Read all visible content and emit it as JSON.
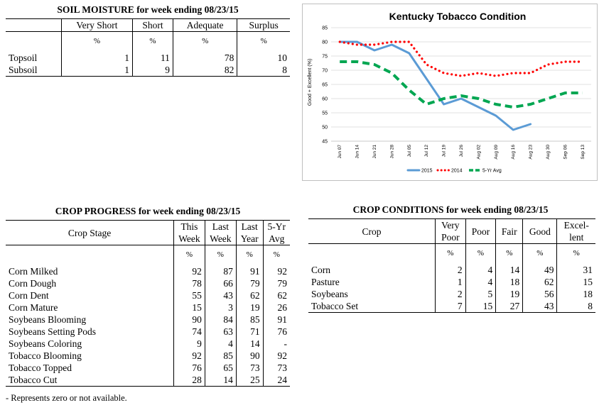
{
  "soil": {
    "title": "SOIL MOISTURE for week ending 08/23/15",
    "headers": [
      "Very Short",
      "Short",
      "Adequate",
      "Surplus"
    ],
    "unit": "%",
    "rows": [
      {
        "label": "Topsoil",
        "values": [
          "1",
          "11",
          "78",
          "10"
        ]
      },
      {
        "label": "Subsoil",
        "values": [
          "1",
          "9",
          "82",
          "8"
        ]
      }
    ]
  },
  "progress": {
    "title": "CROP PROGRESS for week ending 08/23/15",
    "stage_header": "Crop Stage",
    "headers": [
      [
        "This",
        "Week"
      ],
      [
        "Last",
        "Week"
      ],
      [
        "Last",
        "Year"
      ],
      [
        "5-Yr",
        "Avg"
      ]
    ],
    "unit": "%",
    "rows": [
      {
        "label": "Corn Milked",
        "values": [
          "92",
          "87",
          "91",
          "92"
        ]
      },
      {
        "label": "Corn Dough",
        "values": [
          "78",
          "66",
          "79",
          "79"
        ]
      },
      {
        "label": "Corn Dent",
        "values": [
          "55",
          "43",
          "62",
          "62"
        ]
      },
      {
        "label": "Corn Mature",
        "values": [
          "15",
          "3",
          "19",
          "26"
        ]
      },
      {
        "label": "Soybeans Blooming",
        "values": [
          "90",
          "84",
          "85",
          "91"
        ]
      },
      {
        "label": "Soybeans Setting Pods",
        "values": [
          "74",
          "63",
          "71",
          "76"
        ]
      },
      {
        "label": "Soybeans Coloring",
        "values": [
          "9",
          "4",
          "14",
          "-"
        ]
      },
      {
        "label": "Tobacco Blooming",
        "values": [
          "92",
          "85",
          "90",
          "92"
        ]
      },
      {
        "label": "Tobacco Topped",
        "values": [
          "76",
          "65",
          "73",
          "73"
        ]
      },
      {
        "label": "Tobacco Cut",
        "values": [
          "28",
          "14",
          "25",
          "24"
        ]
      }
    ],
    "footnote": "- Represents zero or not available."
  },
  "conditions": {
    "title": "CROP CONDITIONS for week ending 08/23/15",
    "crop_header": "Crop",
    "headers": [
      [
        "Very",
        "Poor"
      ],
      [
        "Poor"
      ],
      [
        "Fair"
      ],
      [
        "Good"
      ],
      [
        "Excel-",
        "lent"
      ]
    ],
    "unit": "%",
    "rows": [
      {
        "label": "Corn",
        "values": [
          "2",
          "4",
          "14",
          "49",
          "31"
        ]
      },
      {
        "label": "Pasture",
        "values": [
          "1",
          "4",
          "18",
          "62",
          "15"
        ]
      },
      {
        "label": "Soybeans",
        "values": [
          "2",
          "5",
          "19",
          "56",
          "18"
        ]
      },
      {
        "label": "Tobacco Set",
        "values": [
          "7",
          "15",
          "27",
          "43",
          "8"
        ]
      }
    ]
  },
  "chart_data": {
    "type": "line",
    "title": "Kentucky Tobacco Condition",
    "ylabel": "Good + Excellent (%)",
    "xlabel": "",
    "ylim": [
      45,
      85
    ],
    "yticks": [
      45,
      50,
      55,
      60,
      65,
      70,
      75,
      80,
      85
    ],
    "categories": [
      "Jun 07",
      "Jun 14",
      "Jun 21",
      "Jun 28",
      "Jul 05",
      "Jul 12",
      "Jul 19",
      "Jul 26",
      "Aug 02",
      "Aug 09",
      "Aug 16",
      "Aug 23",
      "Aug 30",
      "Sep 06",
      "Sep 13"
    ],
    "grid": "horizontal",
    "legend": "bottom",
    "series": [
      {
        "name": "2015",
        "color": "#5b9bd5",
        "style": "solid",
        "values": [
          80,
          80,
          77,
          79,
          76,
          67,
          58,
          60,
          57,
          54,
          49,
          51,
          null,
          null,
          null
        ]
      },
      {
        "name": "2014",
        "color": "#ff0000",
        "style": "dotted",
        "values": [
          80,
          79,
          79,
          80,
          80,
          72,
          69,
          68,
          69,
          68,
          69,
          69,
          72,
          73,
          73
        ]
      },
      {
        "name": "5-Yr Avg",
        "color": "#00a651",
        "style": "dashed",
        "values": [
          73,
          73,
          72,
          69,
          63,
          58,
          60,
          61,
          60,
          58,
          57,
          58,
          60,
          62,
          62
        ]
      }
    ]
  }
}
